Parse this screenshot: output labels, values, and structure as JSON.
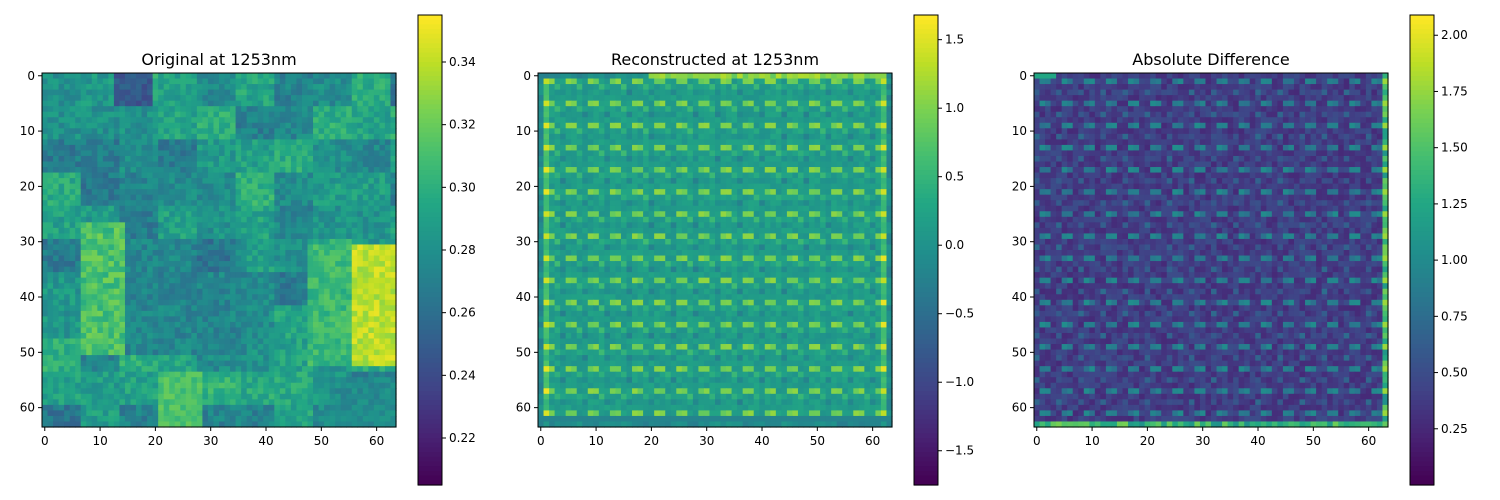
{
  "chart_data": [
    {
      "type": "heatmap",
      "title": "Original at 1253nm",
      "grid_size": [
        64,
        64
      ],
      "xlim": [
        0,
        63
      ],
      "ylim": [
        63,
        0
      ],
      "x_ticks": [
        0,
        10,
        20,
        30,
        40,
        50,
        60
      ],
      "y_ticks": [
        0,
        10,
        20,
        30,
        40,
        50,
        60
      ],
      "colorbar": {
        "min": 0.205,
        "max": 0.355,
        "ticks": [
          0.22,
          0.24,
          0.26,
          0.28,
          0.3,
          0.32,
          0.34
        ],
        "tick_labels": [
          "0.22",
          "0.24",
          "0.26",
          "0.28",
          "0.30",
          "0.32",
          "0.34"
        ]
      },
      "colormap": "viridis",
      "pattern": "patchy"
    },
    {
      "type": "heatmap",
      "title": "Reconstructed at 1253nm",
      "grid_size": [
        64,
        64
      ],
      "xlim": [
        0,
        63
      ],
      "ylim": [
        63,
        0
      ],
      "x_ticks": [
        0,
        10,
        20,
        30,
        40,
        50,
        60
      ],
      "y_ticks": [
        0,
        10,
        20,
        30,
        40,
        50,
        60
      ],
      "colorbar": {
        "min": -1.75,
        "max": 1.68,
        "ticks": [
          1.5,
          1.0,
          0.5,
          0.0,
          -0.5,
          -1.0,
          -1.5
        ],
        "tick_labels": [
          "1.5",
          "1.0",
          "0.5",
          "0.0",
          "−0.5",
          "−1.0",
          "−1.5"
        ]
      },
      "colormap": "viridis",
      "pattern": "periodic"
    },
    {
      "type": "heatmap",
      "title": "Absolute Difference",
      "grid_size": [
        64,
        64
      ],
      "xlim": [
        0,
        63
      ],
      "ylim": [
        63,
        0
      ],
      "x_ticks": [
        0,
        10,
        20,
        30,
        40,
        50,
        60
      ],
      "y_ticks": [
        0,
        10,
        20,
        30,
        40,
        50,
        60
      ],
      "colorbar": {
        "min": 0.0,
        "max": 2.09,
        "ticks": [
          2.0,
          1.75,
          1.5,
          1.25,
          1.0,
          0.75,
          0.5,
          0.25
        ],
        "tick_labels": [
          "2.00",
          "1.75",
          "1.50",
          "1.25",
          "1.00",
          "0.75",
          "0.50",
          "0.25"
        ]
      },
      "colormap": "viridis",
      "pattern": "residual"
    }
  ]
}
